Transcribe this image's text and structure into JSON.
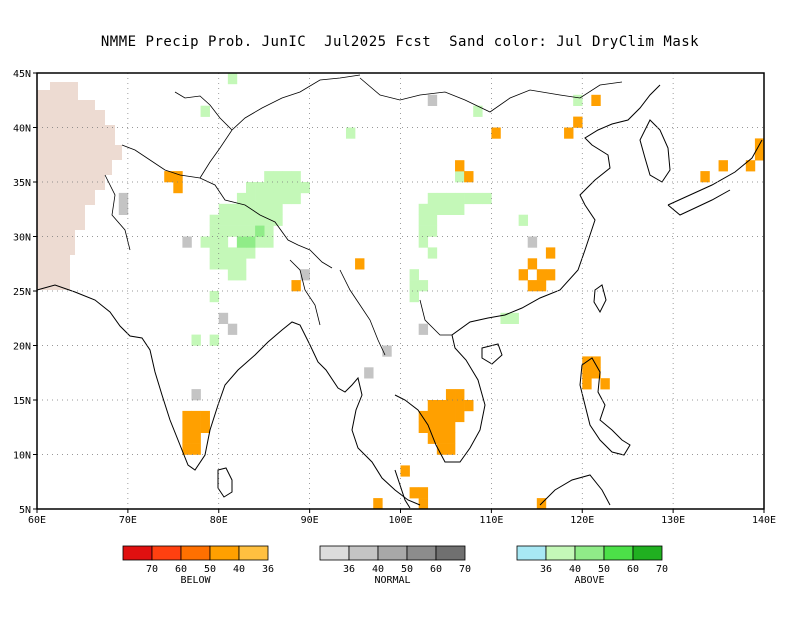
{
  "title": "NMME Precip Prob. JunIC  Jul2025 Fcst  Sand color: Jul DryClim Mask",
  "lat_ticks": [
    "45N",
    "40N",
    "35N",
    "30N",
    "25N",
    "20N",
    "15N",
    "10N",
    "5N"
  ],
  "lon_ticks": [
    "60E",
    "70E",
    "80E",
    "90E",
    "100E",
    "110E",
    "120E",
    "130E",
    "140E"
  ],
  "map_extent": {
    "lon": [
      60,
      140
    ],
    "lat": [
      5,
      45
    ]
  },
  "colors": {
    "sand": "#eddbd2",
    "below": [
      "#e01010",
      "#ff4010",
      "#ff7000",
      "#ffa000",
      "#ffc040"
    ],
    "normal": [
      "#dcdcdc",
      "#c4c4c4",
      "#a8a8a8",
      "#8c8c8c",
      "#707070"
    ],
    "above": [
      "#a8e8f4",
      "#c4f8b8",
      "#90ec88",
      "#4ce048",
      "#20b020"
    ]
  },
  "legend": {
    "below": {
      "label": "BELOW",
      "ticks": [
        "70",
        "60",
        "50",
        "40",
        "36"
      ]
    },
    "normal": {
      "label": "NORMAL",
      "ticks": [
        "36",
        "40",
        "50",
        "60",
        "70"
      ]
    },
    "above": {
      "label": "ABOVE",
      "ticks": [
        "36",
        "40",
        "50",
        "60",
        "70"
      ]
    }
  },
  "grid": "dotted"
}
